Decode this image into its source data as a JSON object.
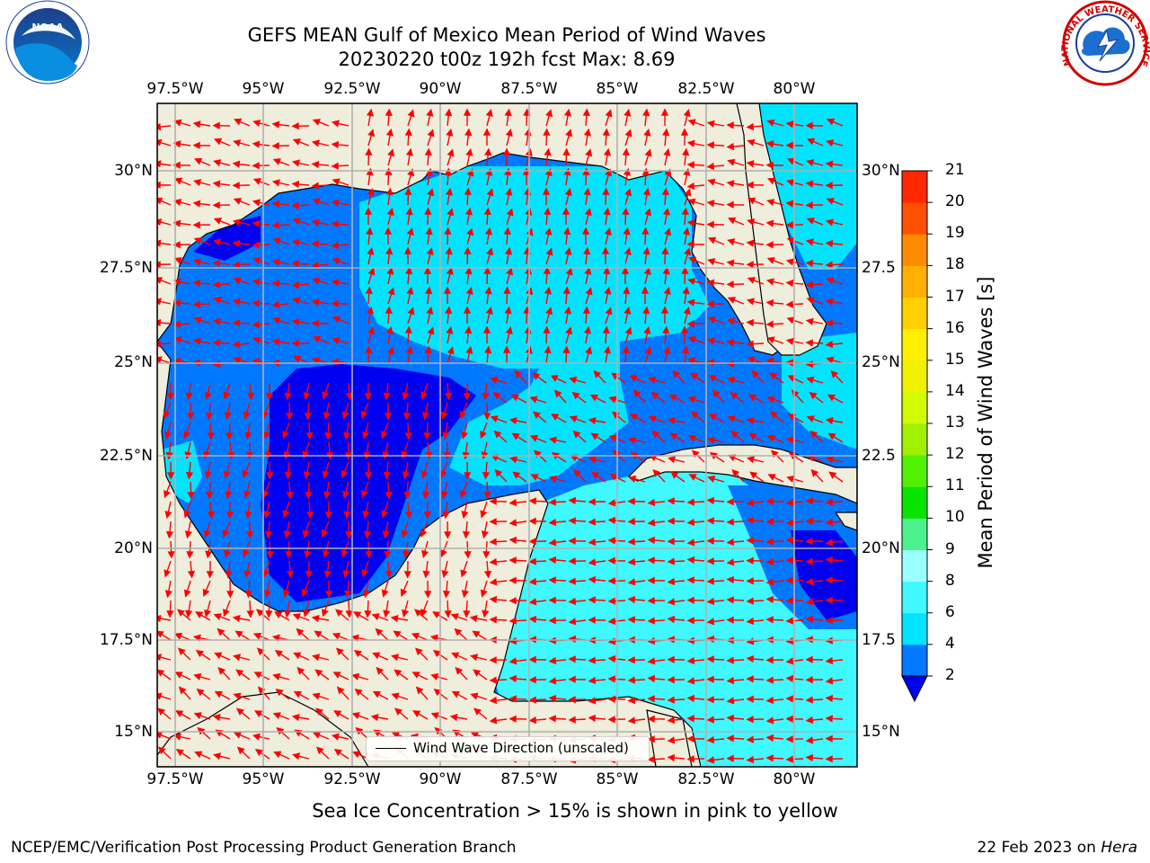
{
  "title_line1": "GEFS MEAN Gulf of Mexico Mean Period of Wind Waves",
  "title_line2": "20230220 t00z 192h fcst   Max: 8.69",
  "map": {
    "lon_ticks": [
      "97.5°W",
      "95°W",
      "92.5°W",
      "90°W",
      "87.5°W",
      "85°W",
      "82.5°W",
      "80°W"
    ],
    "lat_ticks_left": [
      "30°N",
      "27.5°N",
      "25°N",
      "22.5°N",
      "20°N",
      "17.5°N",
      "15°N"
    ],
    "lat_ticks_right": [
      "30°N",
      "27.5",
      "25°N",
      "22.5",
      "20°N",
      "17.5",
      "15°N"
    ],
    "land_color": "#efeddc",
    "arrow_color": "#ff0000",
    "grid_color": "#b0b0b0"
  },
  "legend": {
    "label": "Wind Wave Direction (unscaled)"
  },
  "colorbar": {
    "label": "Mean Period of Wind Waves [s]",
    "ticks": [
      "2",
      "4",
      "6",
      "8",
      "9",
      "10",
      "11",
      "12",
      "13",
      "14",
      "15",
      "16",
      "17",
      "18",
      "19",
      "20",
      "21"
    ],
    "colors": [
      "#0078ff",
      "#00e4ff",
      "#40f8ff",
      "#9affff",
      "#4cf08c",
      "#08e400",
      "#50f000",
      "#a0f000",
      "#d2fa00",
      "#f0f000",
      "#fff000",
      "#ffd000",
      "#ffb000",
      "#ff8c00",
      "#ff5000",
      "#ff2800",
      "#ff0000"
    ],
    "under_color": "#0000f0"
  },
  "footer": {
    "note": "Sea Ice Concentration > 15% is shown in pink to yellow",
    "left": "NCEP/EMC/Verification Post Processing Product Generation Branch",
    "right_date": "22 Feb 2023 on ",
    "right_host": "Hera"
  },
  "logos": {
    "left": "NOAA",
    "right": "NATIONAL WEATHER SERVICE"
  }
}
